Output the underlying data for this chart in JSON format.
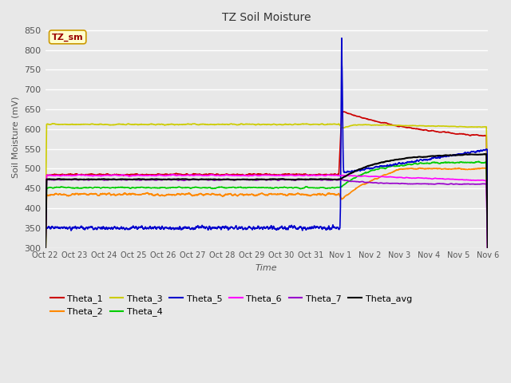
{
  "title": "TZ Soil Moisture",
  "ylabel": "Soil Moisture (mV)",
  "xlabel": "Time",
  "ylim": [
    300,
    860
  ],
  "yticks": [
    300,
    350,
    400,
    450,
    500,
    550,
    600,
    650,
    700,
    750,
    800,
    850
  ],
  "bg_color": "#e8e8e8",
  "plot_bg_color": "#e8e8e8",
  "legend_label": "TZ_sm",
  "series_colors": {
    "Theta_1": "#cc0000",
    "Theta_2": "#ff8800",
    "Theta_3": "#cccc00",
    "Theta_4": "#00cc00",
    "Theta_5": "#0000cc",
    "Theta_6": "#ff00ff",
    "Theta_7": "#9900cc",
    "Theta_avg": "#000000"
  },
  "x_tick_labels": [
    "Oct 22",
    "Oct 23",
    "Oct 24",
    "Oct 25",
    "Oct 26",
    "Oct 27",
    "Oct 28",
    "Oct 29",
    "Oct 30",
    "Oct 31",
    "Nov 1",
    "Nov 2",
    "Nov 3",
    "Nov 4",
    "Nov 5",
    "Nov 6"
  ],
  "legend_row1": [
    "Theta_1",
    "Theta_2",
    "Theta_3",
    "Theta_4",
    "Theta_5",
    "Theta_6"
  ],
  "legend_row2": [
    "Theta_7",
    "Theta_avg"
  ]
}
